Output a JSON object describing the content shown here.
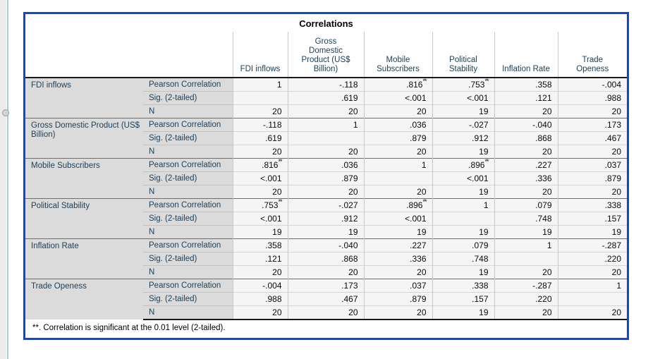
{
  "colors": {
    "selection_border": "#0B4BD3",
    "header_text": "#204158",
    "label_background": "#DBDBDB",
    "cell_background": "#F5F5F5",
    "outline_strip": "#ECECEC",
    "divider_line": "#A9CBD9"
  },
  "table": {
    "title": "Correlations",
    "columns": [
      "FDI inflows",
      "Gross Domestic Product (US$ Billion)",
      "Mobile Subscribers",
      "Political Stability",
      "Inflation Rate",
      "Trade Openess"
    ],
    "stat_labels": [
      "Pearson Correlation",
      "Sig. (2-tailed)",
      "N"
    ],
    "groups": [
      {
        "label": "FDI inflows",
        "rows": [
          {
            "stat": "Pearson Correlation",
            "values": [
              "1",
              "-.118",
              ".816**",
              ".753**",
              ".358",
              "-.004"
            ]
          },
          {
            "stat": "Sig. (2-tailed)",
            "values": [
              "",
              ".619",
              "<.001",
              "<.001",
              ".121",
              ".988"
            ]
          },
          {
            "stat": "N",
            "values": [
              "20",
              "20",
              "20",
              "19",
              "20",
              "20"
            ]
          }
        ]
      },
      {
        "label": "Gross Domestic Product (US$ Billion)",
        "rows": [
          {
            "stat": "Pearson Correlation",
            "values": [
              "-.118",
              "1",
              ".036",
              "-.027",
              "-.040",
              ".173"
            ]
          },
          {
            "stat": "Sig. (2-tailed)",
            "values": [
              ".619",
              "",
              ".879",
              ".912",
              ".868",
              ".467"
            ]
          },
          {
            "stat": "N",
            "values": [
              "20",
              "20",
              "20",
              "19",
              "20",
              "20"
            ]
          }
        ]
      },
      {
        "label": "Mobile Subscribers",
        "rows": [
          {
            "stat": "Pearson Correlation",
            "values": [
              ".816**",
              ".036",
              "1",
              ".896**",
              ".227",
              ".037"
            ]
          },
          {
            "stat": "Sig. (2-tailed)",
            "values": [
              "<.001",
              ".879",
              "",
              "<.001",
              ".336",
              ".879"
            ]
          },
          {
            "stat": "N",
            "values": [
              "20",
              "20",
              "20",
              "19",
              "20",
              "20"
            ]
          }
        ]
      },
      {
        "label": "Political Stability",
        "rows": [
          {
            "stat": "Pearson Correlation",
            "values": [
              ".753**",
              "-.027",
              ".896**",
              "1",
              ".079",
              ".338"
            ]
          },
          {
            "stat": "Sig. (2-tailed)",
            "values": [
              "<.001",
              ".912",
              "<.001",
              "",
              ".748",
              ".157"
            ]
          },
          {
            "stat": "N",
            "values": [
              "19",
              "19",
              "19",
              "19",
              "19",
              "19"
            ]
          }
        ]
      },
      {
        "label": "Inflation Rate",
        "rows": [
          {
            "stat": "Pearson Correlation",
            "values": [
              ".358",
              "-.040",
              ".227",
              ".079",
              "1",
              "-.287"
            ]
          },
          {
            "stat": "Sig. (2-tailed)",
            "values": [
              ".121",
              ".868",
              ".336",
              ".748",
              "",
              ".220"
            ]
          },
          {
            "stat": "N",
            "values": [
              "20",
              "20",
              "20",
              "19",
              "20",
              "20"
            ]
          }
        ]
      },
      {
        "label": "Trade Openess",
        "rows": [
          {
            "stat": "Pearson Correlation",
            "values": [
              "-.004",
              ".173",
              ".037",
              ".338",
              "-.287",
              "1"
            ]
          },
          {
            "stat": "Sig. (2-tailed)",
            "values": [
              ".988",
              ".467",
              ".879",
              ".157",
              ".220",
              ""
            ]
          },
          {
            "stat": "N",
            "values": [
              "20",
              "20",
              "20",
              "19",
              "20",
              "20"
            ]
          }
        ]
      }
    ],
    "footnote": "**. Correlation is significant at the 0.01 level (2-tailed)."
  }
}
